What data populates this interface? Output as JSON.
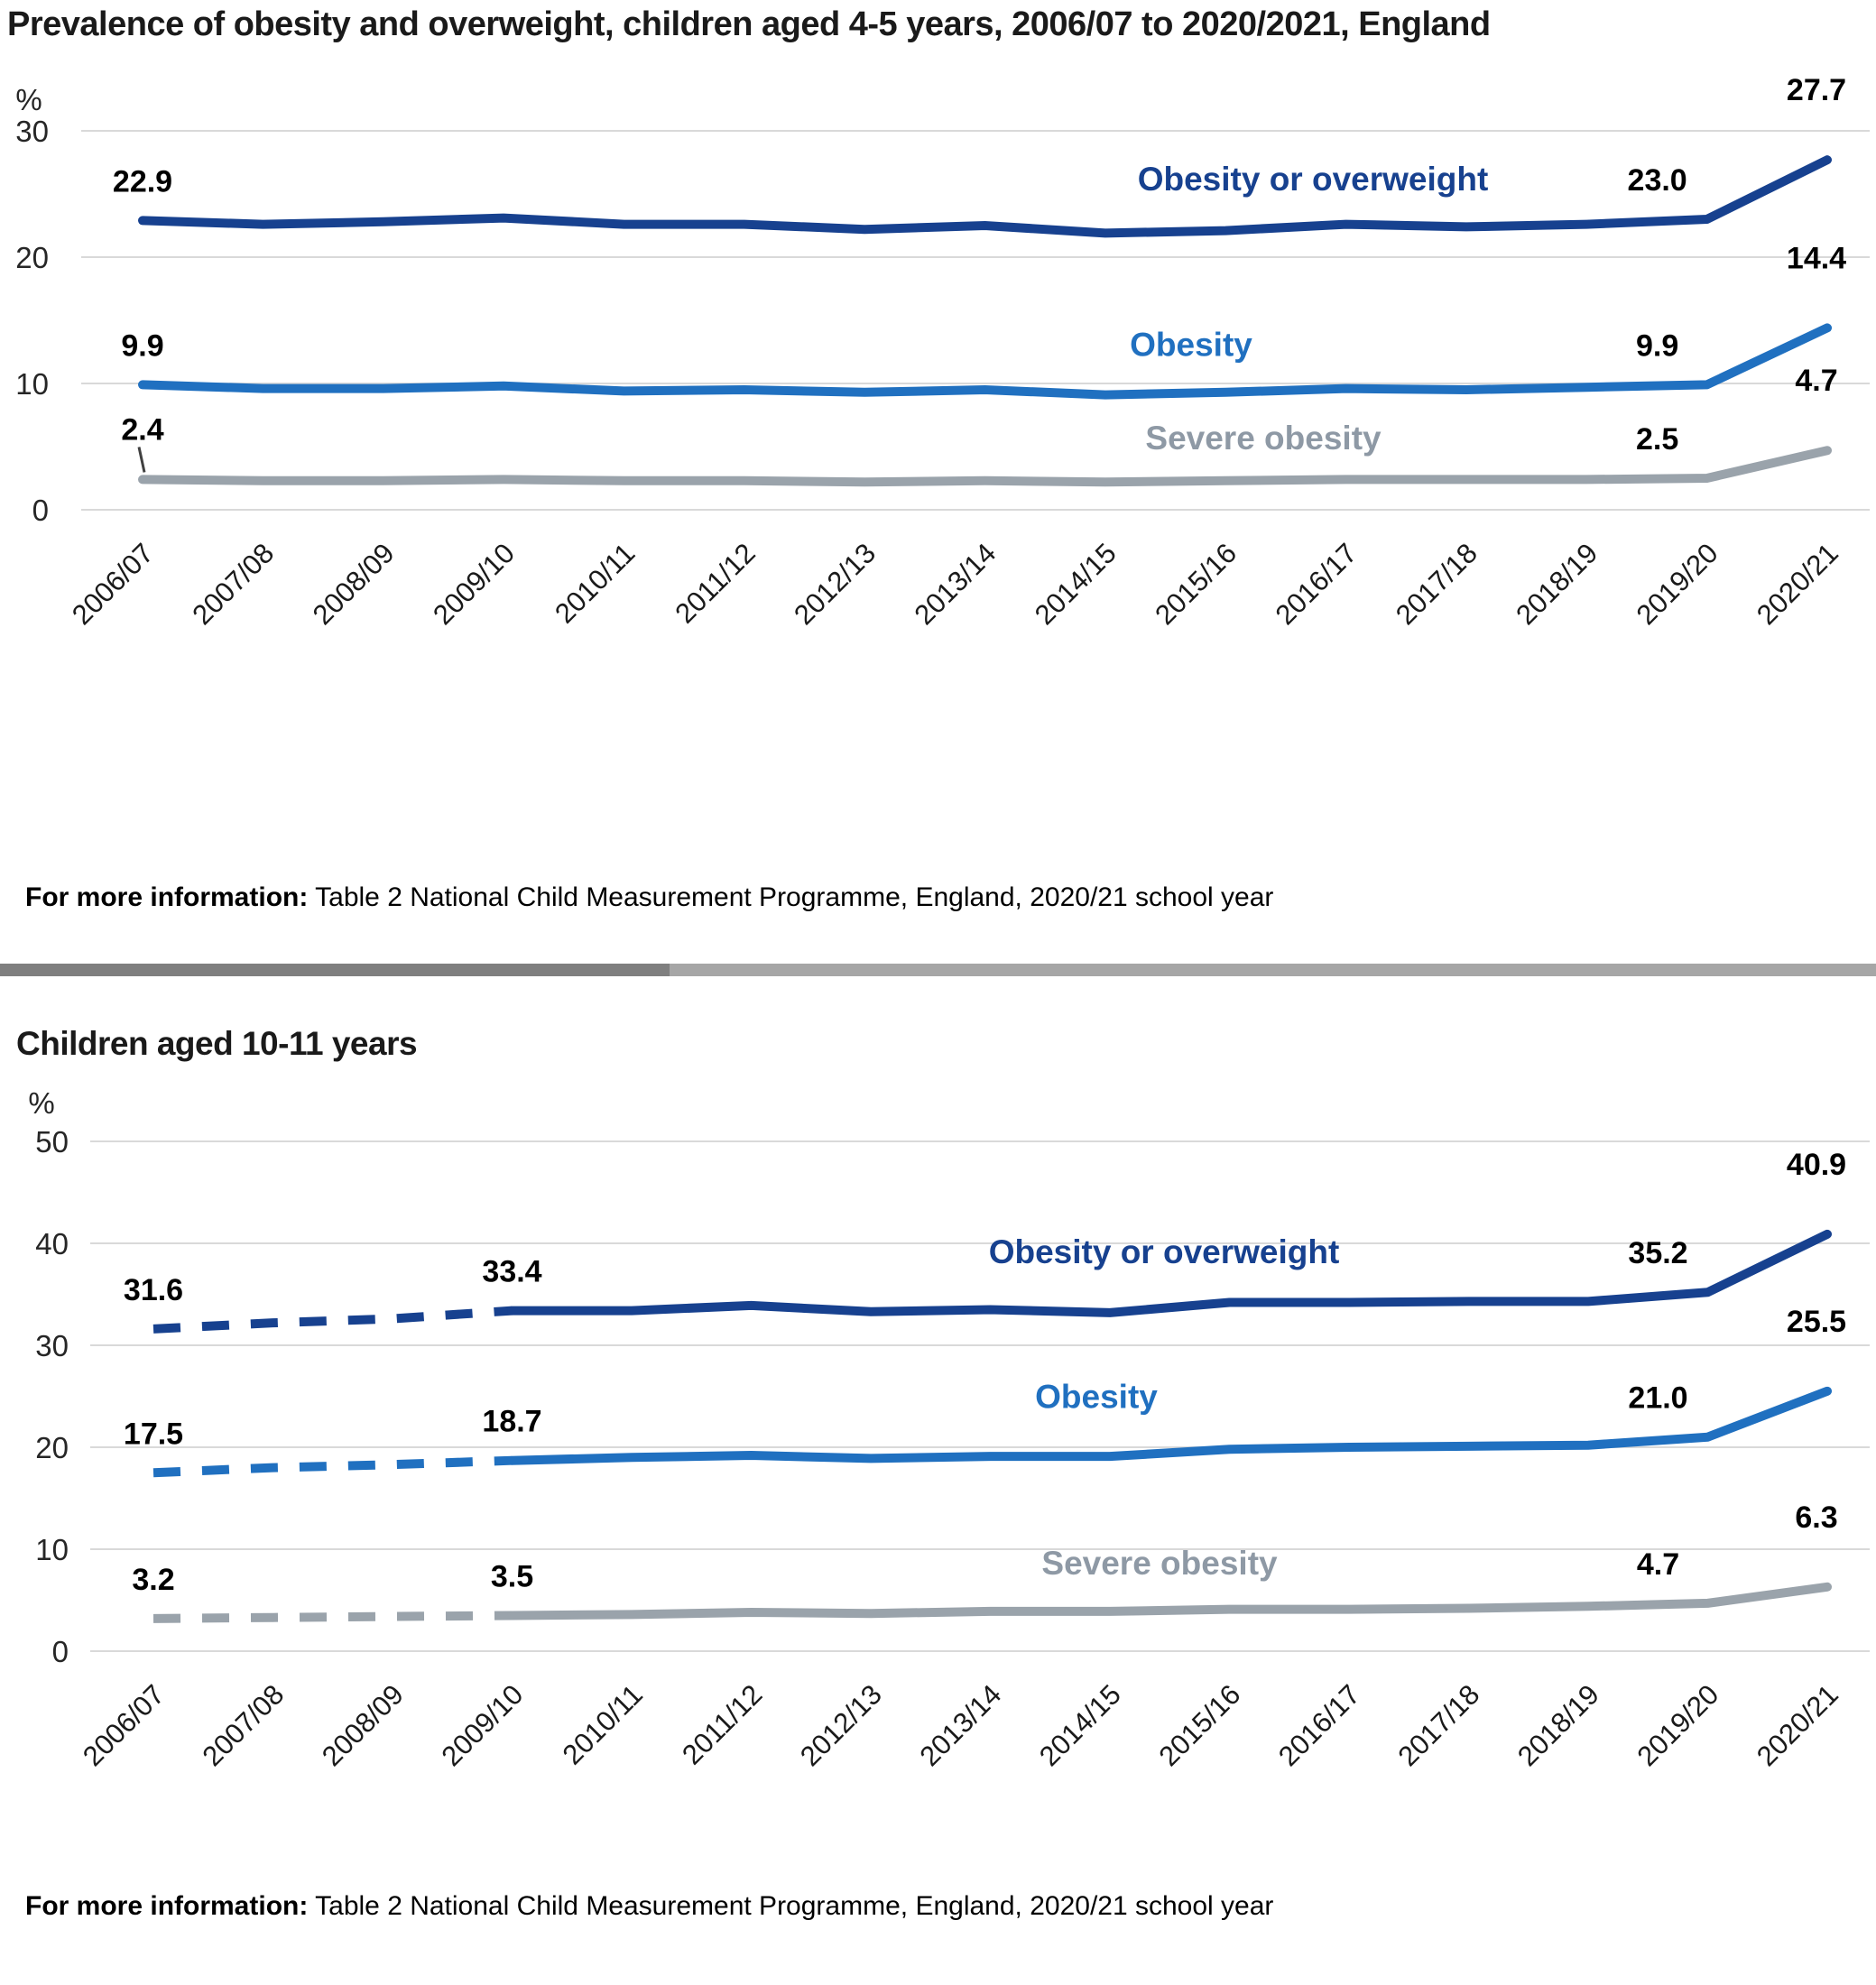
{
  "header": {
    "title": "Prevalence of obesity and overweight, children aged 4-5 years, 2006/07 to 2020/2021, England"
  },
  "section2": {
    "title": "Children aged 10-11 years"
  },
  "footer": {
    "label": "For more information:",
    "text": " Table 2 National Child Measurement Programme, England, 2020/21 school year"
  },
  "colors": {
    "navy": "#17418f",
    "blue": "#2070c0",
    "grey": "#9aa3ab",
    "grey_label": "#8e99a5",
    "grid": "#d9d9d9",
    "axis_text": "#262626",
    "value_text": "#000000",
    "divider_left": "#7f7f7f",
    "divider_right": "#a6a6a6"
  },
  "chart_data": [
    {
      "type": "line",
      "title": "Prevalence of obesity and overweight, children aged 4-5 years, 2006/07 to 2020/2021, England",
      "ylabel": "%",
      "xlabel": "",
      "ylim": [
        0,
        30
      ],
      "yticks": [
        0,
        10,
        20,
        30
      ],
      "grid": true,
      "legend_position": "inline-right",
      "categories": [
        "2006/07",
        "2007/08",
        "2008/09",
        "2009/10",
        "2010/11",
        "2011/12",
        "2012/13",
        "2013/14",
        "2014/15",
        "2015/16",
        "2016/17",
        "2017/18",
        "2018/19",
        "2019/20",
        "2020/21"
      ],
      "series": [
        {
          "name": "Obesity or overweight",
          "color": "#17418f",
          "dashed_until_index": 0,
          "values": [
            22.9,
            22.6,
            22.8,
            23.1,
            22.6,
            22.6,
            22.2,
            22.5,
            21.9,
            22.1,
            22.6,
            22.4,
            22.6,
            23.0,
            27.7
          ],
          "labels": [
            {
              "i": 0,
              "text": "22.9"
            },
            {
              "i": 13,
              "text": "23.0"
            },
            {
              "i": 14,
              "text": "27.7"
            }
          ]
        },
        {
          "name": "Obesity",
          "color": "#2070c0",
          "dashed_until_index": 0,
          "values": [
            9.9,
            9.6,
            9.6,
            9.8,
            9.4,
            9.5,
            9.3,
            9.5,
            9.1,
            9.3,
            9.6,
            9.5,
            9.7,
            9.9,
            14.4
          ],
          "labels": [
            {
              "i": 0,
              "text": "9.9"
            },
            {
              "i": 13,
              "text": "9.9"
            },
            {
              "i": 14,
              "text": "14.4"
            }
          ]
        },
        {
          "name": "Severe obesity",
          "color": "#9aa3ab",
          "label_color": "#8e99a5",
          "dashed_until_index": 0,
          "values": [
            2.4,
            2.3,
            2.3,
            2.4,
            2.3,
            2.3,
            2.2,
            2.3,
            2.2,
            2.3,
            2.4,
            2.4,
            2.4,
            2.5,
            4.7
          ],
          "labels": [
            {
              "i": 0,
              "text": "2.4",
              "leader": true
            },
            {
              "i": 13,
              "text": "2.5"
            },
            {
              "i": 14,
              "text": "4.7"
            }
          ]
        }
      ]
    },
    {
      "type": "line",
      "title": "Children aged 10-11 years",
      "ylabel": "%",
      "xlabel": "",
      "ylim": [
        0,
        50
      ],
      "yticks": [
        0,
        10,
        20,
        30,
        40,
        50
      ],
      "grid": true,
      "legend_position": "inline-right",
      "categories": [
        "2006/07",
        "2007/08",
        "2008/09",
        "2009/10",
        "2010/11",
        "2011/12",
        "2012/13",
        "2013/14",
        "2014/15",
        "2015/16",
        "2016/17",
        "2017/18",
        "2018/19",
        "2019/20",
        "2020/21"
      ],
      "series": [
        {
          "name": "Obesity or overweight",
          "color": "#17418f",
          "dashed_until_index": 3,
          "values": [
            31.6,
            32.2,
            32.6,
            33.4,
            33.4,
            33.9,
            33.3,
            33.5,
            33.2,
            34.2,
            34.2,
            34.3,
            34.3,
            35.2,
            40.9
          ],
          "labels": [
            {
              "i": 0,
              "text": "31.6"
            },
            {
              "i": 3,
              "text": "33.4"
            },
            {
              "i": 13,
              "text": "35.2"
            },
            {
              "i": 14,
              "text": "40.9"
            }
          ]
        },
        {
          "name": "Obesity",
          "color": "#2070c0",
          "dashed_until_index": 3,
          "values": [
            17.5,
            18.0,
            18.3,
            18.7,
            19.0,
            19.2,
            18.9,
            19.1,
            19.1,
            19.8,
            20.0,
            20.1,
            20.2,
            21.0,
            25.5
          ],
          "labels": [
            {
              "i": 0,
              "text": "17.5"
            },
            {
              "i": 3,
              "text": "18.7"
            },
            {
              "i": 13,
              "text": "21.0"
            },
            {
              "i": 14,
              "text": "25.5"
            }
          ]
        },
        {
          "name": "Severe obesity",
          "color": "#9aa3ab",
          "label_color": "#8e99a5",
          "dashed_until_index": 3,
          "values": [
            3.2,
            3.3,
            3.4,
            3.5,
            3.6,
            3.8,
            3.7,
            3.9,
            3.9,
            4.1,
            4.1,
            4.2,
            4.4,
            4.7,
            6.3
          ],
          "labels": [
            {
              "i": 0,
              "text": "3.2"
            },
            {
              "i": 3,
              "text": "3.5"
            },
            {
              "i": 13,
              "text": "4.7"
            },
            {
              "i": 14,
              "text": "6.3"
            }
          ]
        }
      ]
    }
  ]
}
